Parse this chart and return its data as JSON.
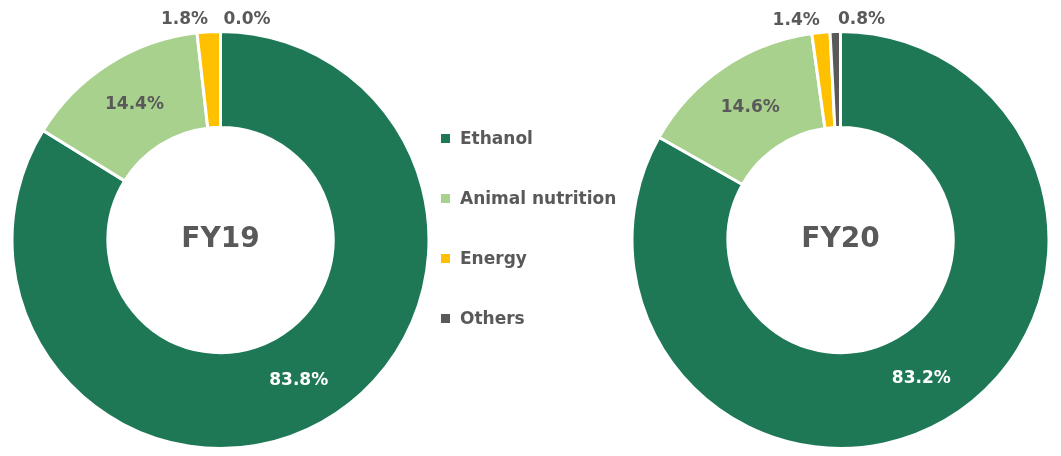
{
  "chart_data": [
    {
      "type": "donut",
      "title": "FY19",
      "categories": [
        "Ethanol",
        "Animal nutrition",
        "Energy",
        "Others"
      ],
      "values": [
        83.8,
        14.4,
        1.8,
        0.0
      ],
      "colors": [
        "#1e7856",
        "#a9d18e",
        "#ffc000",
        "#595959"
      ],
      "value_labels": [
        "83.8%",
        "14.4%",
        "1.8%",
        "0.0%"
      ],
      "legend": "right"
    },
    {
      "type": "donut",
      "title": "FY20",
      "categories": [
        null,
        null,
        null,
        null
      ],
      "values": [
        83.2,
        14.6,
        1.4,
        0.8
      ],
      "colors": [
        "#1e7856",
        "#a9d18e",
        "#ffc000",
        "#595959"
      ],
      "value_labels": [
        "83.2%",
        "14.6%",
        "1.4%",
        "0.8%"
      ]
    }
  ]
}
